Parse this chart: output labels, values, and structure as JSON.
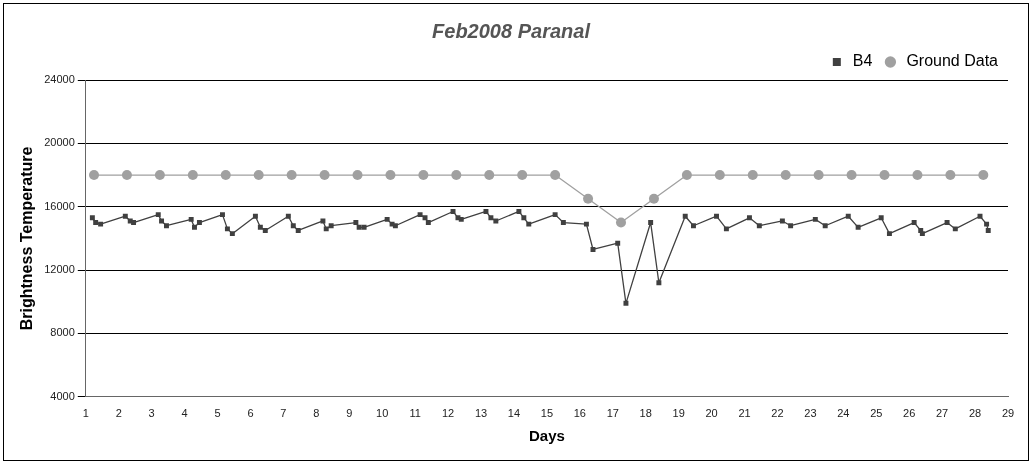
{
  "chart_data": {
    "type": "line",
    "title": "Feb2008 Paranal",
    "xlabel": "Days",
    "ylabel": "Brightness Temperature",
    "xlim": [
      1,
      29
    ],
    "xticks": [
      1,
      2,
      3,
      4,
      5,
      6,
      7,
      8,
      9,
      10,
      11,
      12,
      13,
      14,
      15,
      16,
      17,
      18,
      19,
      20,
      21,
      22,
      23,
      24,
      25,
      26,
      27,
      28,
      29
    ],
    "ylim": [
      4000,
      24000
    ],
    "yticks": [
      4000,
      8000,
      12000,
      16000,
      20000,
      24000
    ],
    "grid": "y",
    "legend": "top right",
    "series": [
      {
        "name": "B4",
        "color": "#404040",
        "marker": "square",
        "x": [
          1.2,
          1.3,
          1.45,
          2.2,
          2.35,
          2.45,
          3.2,
          3.3,
          3.45,
          4.2,
          4.3,
          4.45,
          5.15,
          5.3,
          5.45,
          6.15,
          6.3,
          6.45,
          7.15,
          7.3,
          7.45,
          8.2,
          8.3,
          8.45,
          9.2,
          9.3,
          9.45,
          10.15,
          10.3,
          10.4,
          11.15,
          11.3,
          11.4,
          12.15,
          12.3,
          12.4,
          13.15,
          13.3,
          13.45,
          14.15,
          14.3,
          14.45,
          15.25,
          15.5,
          16.2,
          16.4,
          17.15,
          17.4,
          18.15,
          18.4,
          19.2,
          19.45,
          20.15,
          20.45,
          21.15,
          21.45,
          22.15,
          22.4,
          23.15,
          23.45,
          24.15,
          24.45,
          25.15,
          25.4,
          26.15,
          26.35,
          26.4,
          27.15,
          27.4,
          28.15,
          28.35,
          28.4
        ],
        "values": [
          15300,
          15000,
          14900,
          15400,
          15100,
          15000,
          15500,
          15100,
          14800,
          15200,
          14700,
          15000,
          15500,
          14600,
          14300,
          15400,
          14700,
          14500,
          15400,
          14800,
          14500,
          15100,
          14600,
          14800,
          15000,
          14700,
          14700,
          15200,
          14900,
          14800,
          15500,
          15300,
          15000,
          15700,
          15300,
          15200,
          15700,
          15300,
          15100,
          15700,
          15300,
          14900,
          15500,
          15000,
          14900,
          13300,
          13700,
          9900,
          15000,
          11200,
          15400,
          14800,
          15400,
          14600,
          15300,
          14800,
          15100,
          14800,
          15200,
          14800,
          15400,
          14700,
          15300,
          14300,
          15000,
          14500,
          14300,
          15000,
          14600,
          15400,
          14900,
          14500
        ]
      },
      {
        "name": "Ground Data",
        "color": "#a0a0a0",
        "marker": "circle",
        "x": [
          1.25,
          2.25,
          3.25,
          4.25,
          5.25,
          6.25,
          7.25,
          8.25,
          9.25,
          10.25,
          11.25,
          12.25,
          13.25,
          14.25,
          15.25,
          16.25,
          17.25,
          18.25,
          19.25,
          20.25,
          21.25,
          22.25,
          23.25,
          24.25,
          25.25,
          26.25,
          27.25,
          28.25
        ],
        "values": [
          18000,
          18000,
          18000,
          18000,
          18000,
          18000,
          18000,
          18000,
          18000,
          18000,
          18000,
          18000,
          18000,
          18000,
          18000,
          16500,
          15000,
          16500,
          18000,
          18000,
          18000,
          18000,
          18000,
          18000,
          18000,
          18000,
          18000,
          18000
        ]
      }
    ]
  }
}
